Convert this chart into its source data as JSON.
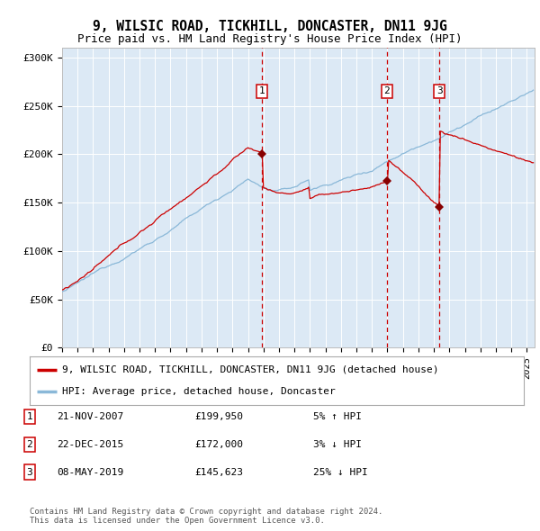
{
  "title": "9, WILSIC ROAD, TICKHILL, DONCASTER, DN11 9JG",
  "subtitle": "Price paid vs. HM Land Registry's House Price Index (HPI)",
  "ylim": [
    0,
    310000
  ],
  "xlim_start": 1995.0,
  "xlim_end": 2025.5,
  "yticks": [
    0,
    50000,
    100000,
    150000,
    200000,
    250000,
    300000
  ],
  "ytick_labels": [
    "£0",
    "£50K",
    "£100K",
    "£150K",
    "£200K",
    "£250K",
    "£300K"
  ],
  "background_color": "#ffffff",
  "plot_bg_color": "#dce9f5",
  "grid_color": "#ffffff",
  "hpi_line_color": "#8ab8d8",
  "price_line_color": "#cc0000",
  "sale_marker_color": "#880000",
  "vline_color": "#cc0000",
  "transaction_label_border": "#cc0000",
  "transactions": [
    {
      "num": 1,
      "date": "21-NOV-2007",
      "price": 199950,
      "year": 2007.89
    },
    {
      "num": 2,
      "date": "22-DEC-2015",
      "price": 172000,
      "year": 2015.97
    },
    {
      "num": 3,
      "date": "08-MAY-2019",
      "price": 145623,
      "year": 2019.35
    }
  ],
  "legend_entries": [
    {
      "label": "9, WILSIC ROAD, TICKHILL, DONCASTER, DN11 9JG (detached house)",
      "color": "#cc0000"
    },
    {
      "label": "HPI: Average price, detached house, Doncaster",
      "color": "#8ab8d8"
    }
  ],
  "table_rows": [
    {
      "num": "1",
      "date": "21-NOV-2007",
      "price": "£199,950",
      "pct": "5% ↑ HPI"
    },
    {
      "num": "2",
      "date": "22-DEC-2015",
      "price": "£172,000",
      "pct": "3% ↓ HPI"
    },
    {
      "num": "3",
      "date": "08-MAY-2019",
      "price": "£145,623",
      "pct": "25% ↓ HPI"
    }
  ],
  "footnote": "Contains HM Land Registry data © Crown copyright and database right 2024.\nThis data is licensed under the Open Government Licence v3.0.",
  "title_fontsize": 10.5,
  "subtitle_fontsize": 9,
  "tick_fontsize": 7.5,
  "legend_fontsize": 8,
  "table_fontsize": 8,
  "footnote_fontsize": 6.5
}
